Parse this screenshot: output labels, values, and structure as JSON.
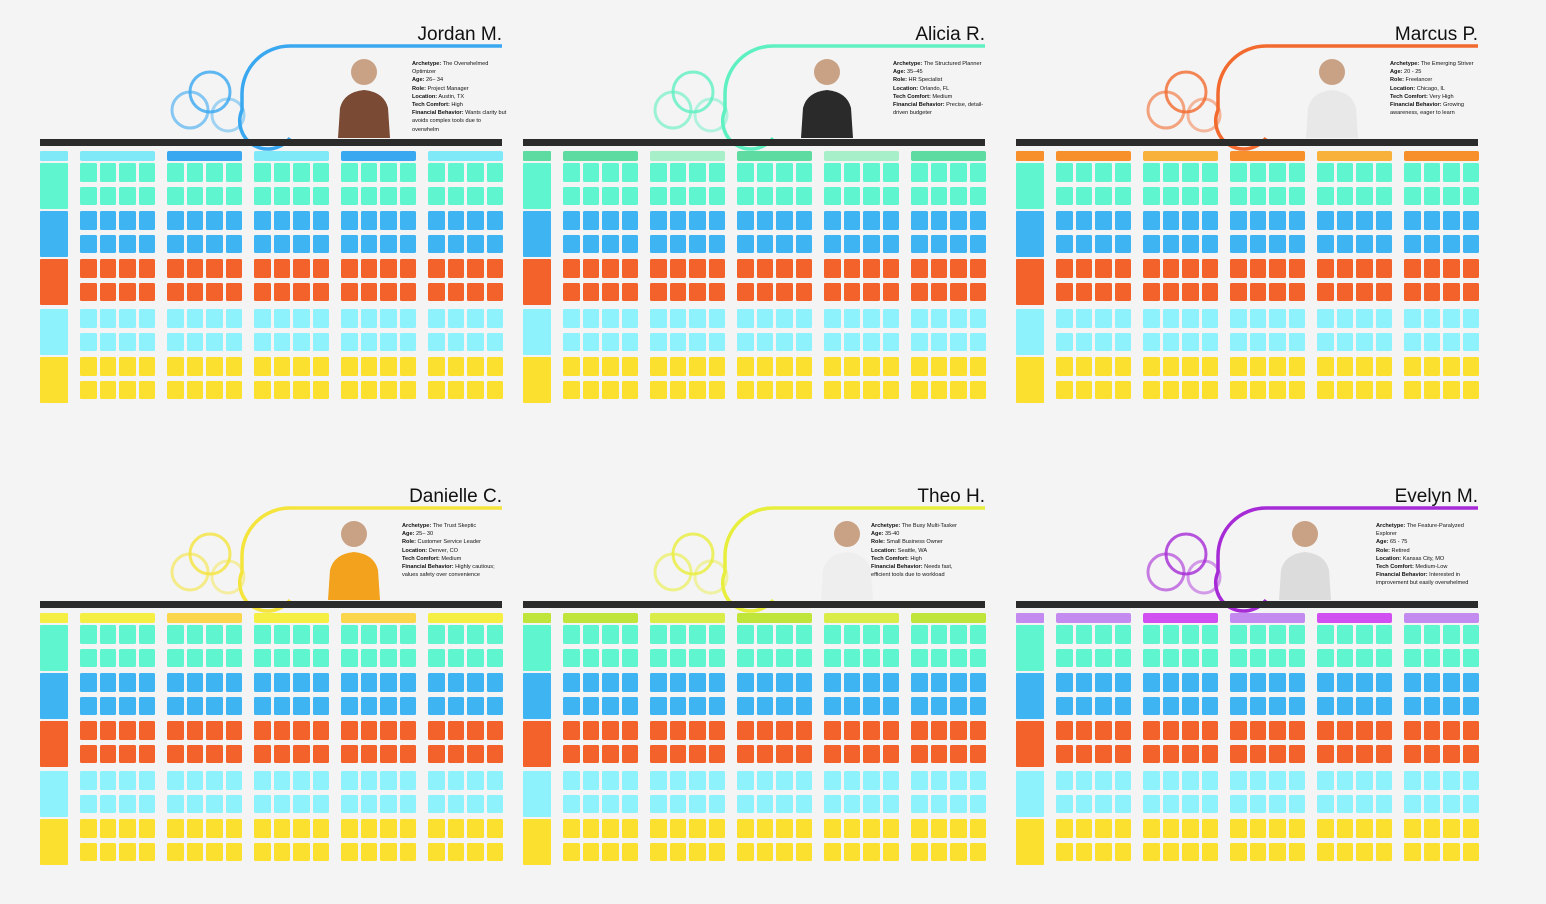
{
  "personas": [
    {
      "name": "Jordan M.",
      "accent": "#3aa8f0",
      "archetype": "The Overwhelmed Optimizer",
      "age": "26– 34",
      "role": "Project Manager",
      "location": "Austin, TX",
      "tech_comfort": "High",
      "financial_behavior": "Wants clarity but avoids complex tools due to overwhelm",
      "header_colors": [
        "#7fe9f8",
        "#3aa8f0",
        "#7fe9f8",
        "#3aa8f0",
        "#7fe9f8"
      ]
    },
    {
      "name": "Alicia R.",
      "accent": "#5ef0c0",
      "archetype": "The Structured Planner",
      "age": "35–45",
      "role": "HR Specialist",
      "location": "Orlando, FL",
      "tech_comfort": "Medium",
      "financial_behavior": "Precise, detail-driven budgeter",
      "header_colors": [
        "#5ddba0",
        "#a6efc8",
        "#5ddba0",
        "#a6efc8",
        "#5ddba0"
      ]
    },
    {
      "name": "Marcus P.",
      "accent": "#f26a2e",
      "archetype": "The Emerging Striver",
      "age": "20 - 25",
      "role": "Freelancer",
      "location": "Chicago, IL",
      "tech_comfort": "Very High",
      "financial_behavior": "Growing awareness, eager to learn",
      "header_colors": [
        "#f7902a",
        "#f8b13a",
        "#f7902a",
        "#f8b13a",
        "#f7902a"
      ]
    },
    {
      "name": "Danielle C.",
      "accent": "#f4e43c",
      "archetype": "The Trust Skeptic",
      "age": "25– 30",
      "role": "Customer Service Leader",
      "location": "Denver, CO",
      "tech_comfort": "Medium",
      "financial_behavior": "Highly cautious; values safety over convenience",
      "header_colors": [
        "#f4ef42",
        "#fbd54a",
        "#f4ef42",
        "#fbd54a",
        "#f4ef42"
      ]
    },
    {
      "name": "Theo H.",
      "accent": "#e8ee3c",
      "archetype": "The Busy Multi-Tasker",
      "age": "35-40",
      "role": "Small Business Owner",
      "location": "Seattle, WA",
      "tech_comfort": "High",
      "financial_behavior": "Needs fast, efficient tools due to workload",
      "header_colors": [
        "#bfe53a",
        "#d9ec48",
        "#bfe53a",
        "#d9ec48",
        "#bfe53a"
      ]
    },
    {
      "name": "Evelyn M.",
      "accent": "#a62ad6",
      "archetype": "The Feature-Paralyzed Explorer",
      "age": "65 - 75",
      "role": "Retired",
      "location": "Kansas City, MO",
      "tech_comfort": "Medium-Low",
      "financial_behavior": "Interested in improvement but easily overwhelmed",
      "header_colors": [
        "#c38af0",
        "#d14ef0",
        "#c38af0",
        "#d14ef0",
        "#c38af0"
      ]
    }
  ],
  "labels": {
    "archetype": "Archetype:",
    "age": "Age:",
    "role": "Role:",
    "location": "Location:",
    "tech_comfort": "Tech Comfort:",
    "financial_behavior": "Financial Behavior:"
  },
  "colors": {
    "background": "#f4f4f4",
    "band": "#2b2b2b",
    "teal": "#5ef5cf",
    "blue": "#3eb4f2",
    "orange": "#f4622c",
    "cyan": "#8df2fb",
    "yellow": "#fbe02f"
  }
}
